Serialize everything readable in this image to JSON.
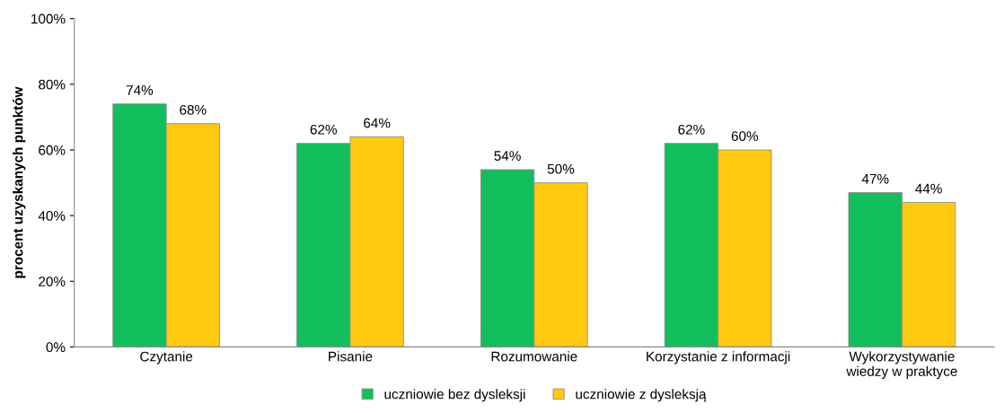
{
  "chart_data": {
    "type": "bar",
    "ylabel": "procent uzyskanych punktów",
    "categories": [
      "Czytanie",
      "Pisanie",
      "Rozumowanie",
      "Korzystanie z informacji",
      "Wykorzystywanie\nwiedzy w praktyce"
    ],
    "series": [
      {
        "name": "uczniowie bez dysleksji",
        "color": "#12bf5c",
        "values": [
          74,
          62,
          54,
          62,
          47
        ],
        "value_labels": [
          "74%",
          "62%",
          "54%",
          "62%",
          "47%"
        ]
      },
      {
        "name": "uczniowie z dysleksją",
        "color": "#ffc90e",
        "values": [
          68,
          64,
          50,
          60,
          44
        ],
        "value_labels": [
          "68%",
          "64%",
          "50%",
          "60%",
          "44%"
        ]
      }
    ],
    "ylim": [
      0,
      100
    ],
    "yticks": [
      {
        "value": 0,
        "label": "0%"
      },
      {
        "value": 20,
        "label": "20%"
      },
      {
        "value": 40,
        "label": "40%"
      },
      {
        "value": 60,
        "label": "60%"
      },
      {
        "value": 80,
        "label": "80%"
      },
      {
        "value": 100,
        "label": "100%"
      }
    ],
    "grid": false,
    "legend": "bottom"
  }
}
